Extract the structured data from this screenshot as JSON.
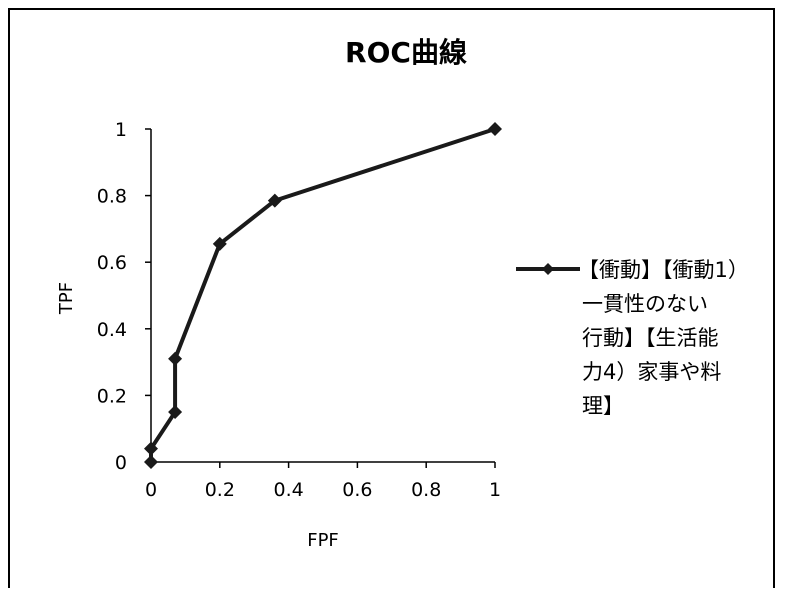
{
  "chart_data": {
    "type": "line",
    "title": "ROC曲線",
    "xlabel": "FPF",
    "ylabel": "TPF",
    "xlim": [
      0,
      1
    ],
    "ylim": [
      0,
      1
    ],
    "x_ticks": [
      "0",
      "0.2",
      "0.4",
      "0.6",
      "0.8",
      "1"
    ],
    "y_ticks": [
      "0",
      "0.2",
      "0.4",
      "0.6",
      "0.8",
      "1"
    ],
    "grid": false,
    "legend_position": "right",
    "series": [
      {
        "name": "【衝動】【衝動1）一貫性のない行動】【生活能力4）家事や料理】",
        "legend_lines": [
          "【衝動】【衝動1）",
          "一貫性のない",
          "行動】【生活能",
          "力4）家事や料",
          "理】"
        ],
        "color": "#1a1a1a",
        "marker": "diamond",
        "points": [
          {
            "x": 0,
            "y": 0
          },
          {
            "x": 0,
            "y": 0.04
          },
          {
            "x": 0.07,
            "y": 0.15
          },
          {
            "x": 0.07,
            "y": 0.31
          },
          {
            "x": 0.2,
            "y": 0.655
          },
          {
            "x": 0.36,
            "y": 0.785
          },
          {
            "x": 1,
            "y": 1
          }
        ]
      }
    ]
  }
}
